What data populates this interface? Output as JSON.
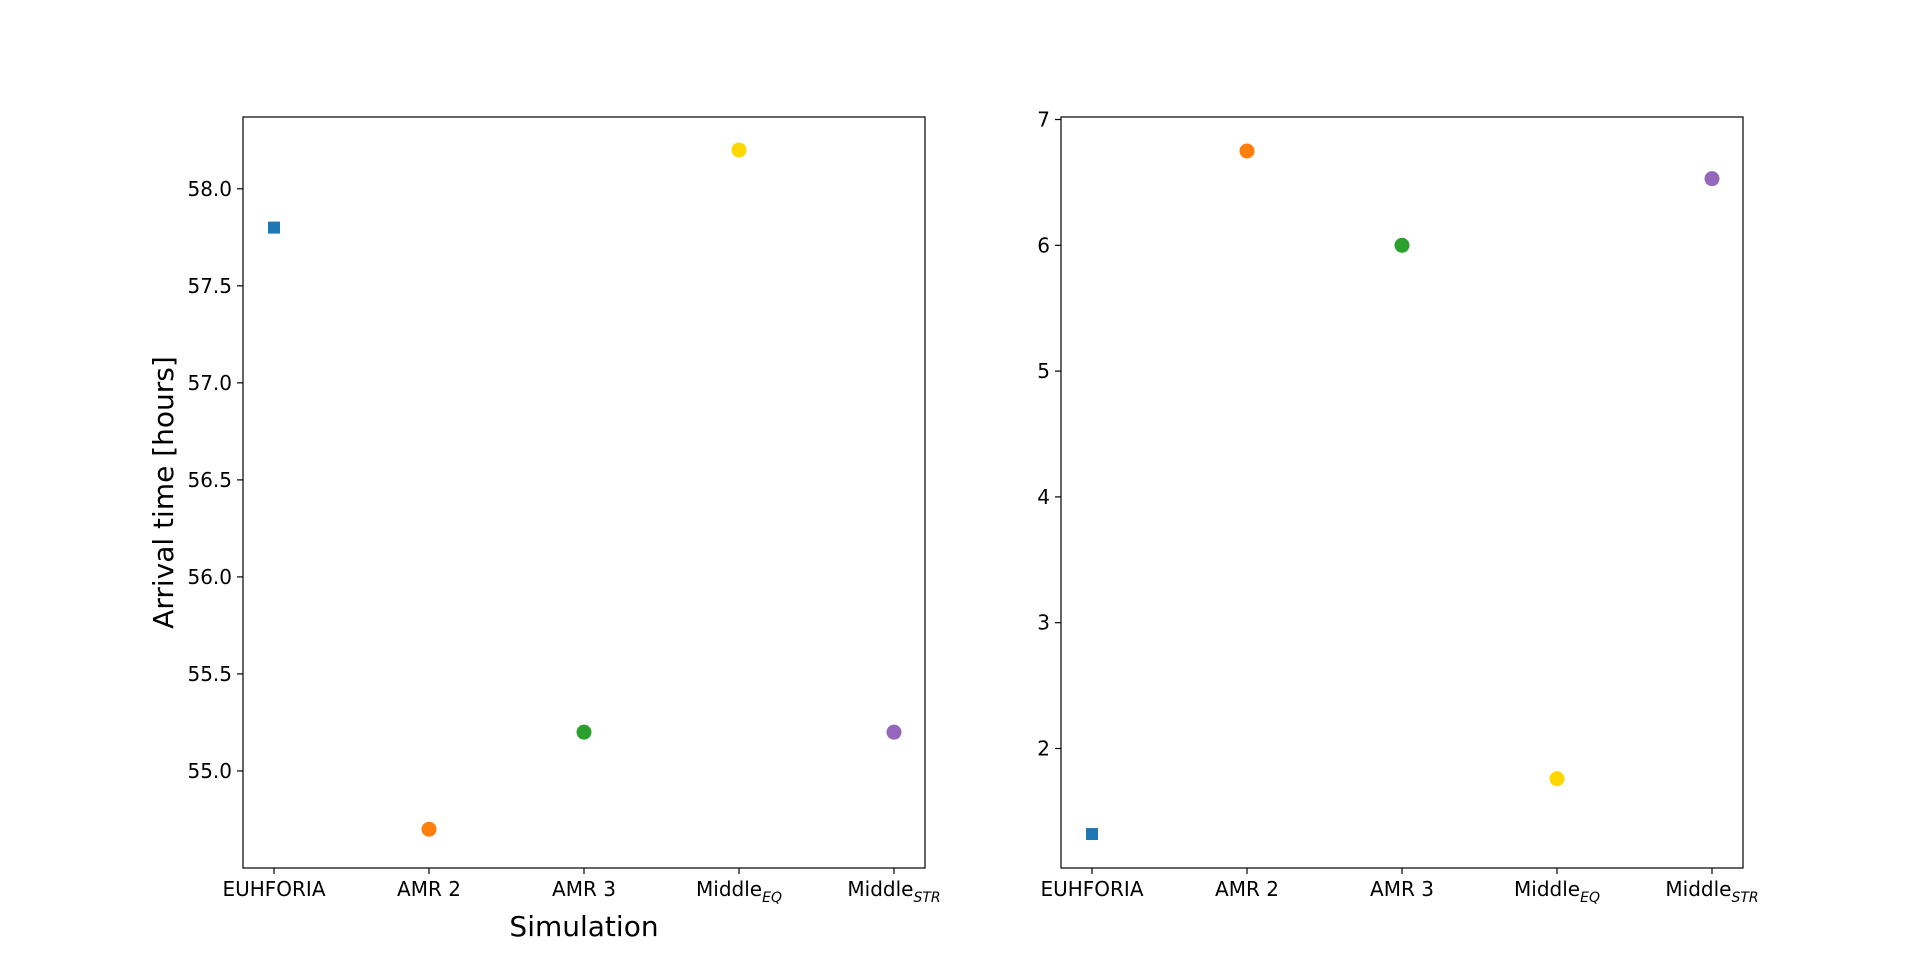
{
  "chart_data": [
    {
      "type": "scatter",
      "categories": [
        {
          "main": "EUHFORIA",
          "sub": ""
        },
        {
          "main": "AMR 2",
          "sub": ""
        },
        {
          "main": "AMR 3",
          "sub": ""
        },
        {
          "main": "Middle",
          "sub": "EQ"
        },
        {
          "main": "Middle",
          "sub": "STR"
        }
      ],
      "values": [
        57.8,
        54.7,
        55.2,
        58.2,
        55.2
      ],
      "markers": [
        "square",
        "circle",
        "circle",
        "circle",
        "circle"
      ],
      "colors": [
        "#1f77b4",
        "#ff7f0e",
        "#2ca02c",
        "#ffd700",
        "#9467bd"
      ],
      "xlabel": "Simulation",
      "ylabel": "Arrival time [hours]",
      "ylim": [
        54.5,
        58.37
      ],
      "yticks": [
        55.0,
        55.5,
        56.0,
        56.5,
        57.0,
        57.5,
        58.0
      ],
      "ytick_labels": [
        "55.0",
        "55.5",
        "56.0",
        "56.5",
        "57.0",
        "57.5",
        "58.0"
      ],
      "grid": false
    },
    {
      "type": "scatter",
      "categories": [
        {
          "main": "EUHFORIA",
          "sub": ""
        },
        {
          "main": "AMR 2",
          "sub": ""
        },
        {
          "main": "AMR 3",
          "sub": ""
        },
        {
          "main": "Middle",
          "sub": "EQ"
        },
        {
          "main": "Middle",
          "sub": "STR"
        }
      ],
      "values": [
        1.32,
        6.75,
        6.0,
        1.76,
        6.53
      ],
      "markers": [
        "square",
        "circle",
        "circle",
        "circle",
        "circle"
      ],
      "colors": [
        "#1f77b4",
        "#ff7f0e",
        "#2ca02c",
        "#ffd700",
        "#9467bd"
      ],
      "xlabel": "",
      "ylabel": "",
      "ylim": [
        1.05,
        7.02
      ],
      "yticks": [
        2,
        3,
        4,
        5,
        6,
        7
      ],
      "ytick_labels": [
        "2",
        "3",
        "4",
        "5",
        "6",
        "7"
      ],
      "grid": false
    }
  ]
}
